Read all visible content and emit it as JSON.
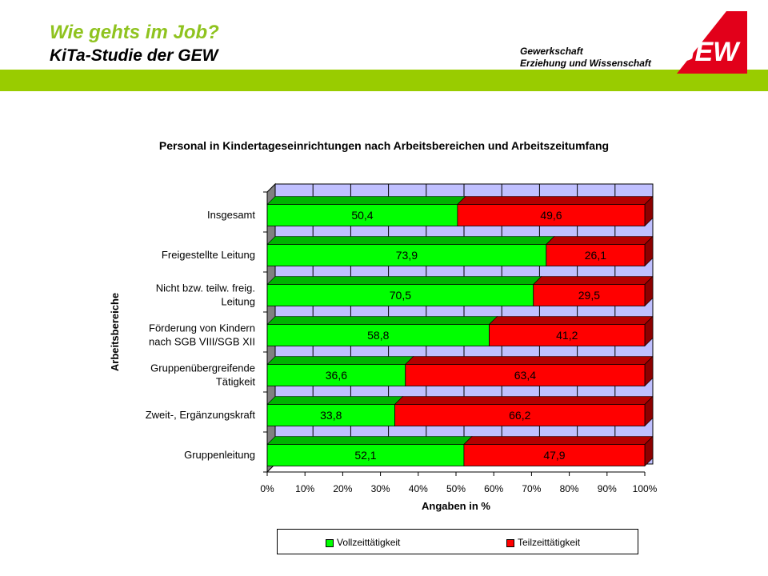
{
  "header": {
    "title": "Wie gehts im Job?",
    "subtitle": "KiTa-Studie der GEW",
    "org_line1": "Gewerkschaft",
    "org_line2": "Erziehung und Wissenschaft",
    "logo_text": "GEW",
    "accent_color": "#99cc00",
    "logo_color": "#e2001a"
  },
  "chart_data": {
    "type": "bar",
    "orientation": "horizontal",
    "stacked": true,
    "percent": true,
    "title": "Personal in Kindertageseinrichtungen nach Arbeitsbereichen und Arbeitszeitumfang",
    "xlabel": "Angaben in %",
    "ylabel": "Arbeitsbereiche",
    "categories": [
      [
        "Insgesamt"
      ],
      [
        "Freigestellte Leitung"
      ],
      [
        "Nicht bzw. teilw. freig.",
        "Leitung"
      ],
      [
        "Förderung von Kindern",
        "nach SGB VIII/SGB XII"
      ],
      [
        "Gruppenübergreifende",
        "Tätigkeit"
      ],
      [
        "Zweit-, Ergänzungskraft"
      ],
      [
        "Gruppenleitung"
      ]
    ],
    "series": [
      {
        "name": "Vollzeittätigkeit",
        "color": "#00ff00",
        "values": [
          50.4,
          73.9,
          70.5,
          58.8,
          36.6,
          33.8,
          52.1
        ],
        "labels": [
          "50,4",
          "73,9",
          "70,5",
          "58,8",
          "36,6",
          "33,8",
          "52,1"
        ]
      },
      {
        "name": "Teilzeittätigkeit",
        "color": "#ff0000",
        "values": [
          49.6,
          26.1,
          29.5,
          41.2,
          63.4,
          66.2,
          47.9
        ],
        "labels": [
          "49,6",
          "26,1",
          "29,5",
          "41,2",
          "63,4",
          "66,2",
          "47,9"
        ]
      }
    ],
    "xticks": [
      "0%",
      "10%",
      "20%",
      "30%",
      "40%",
      "50%",
      "60%",
      "70%",
      "80%",
      "90%",
      "100%"
    ],
    "xlim": [
      0,
      100
    ],
    "grid": true,
    "plot_background": "#c0c0ff",
    "legend_position": "bottom"
  }
}
